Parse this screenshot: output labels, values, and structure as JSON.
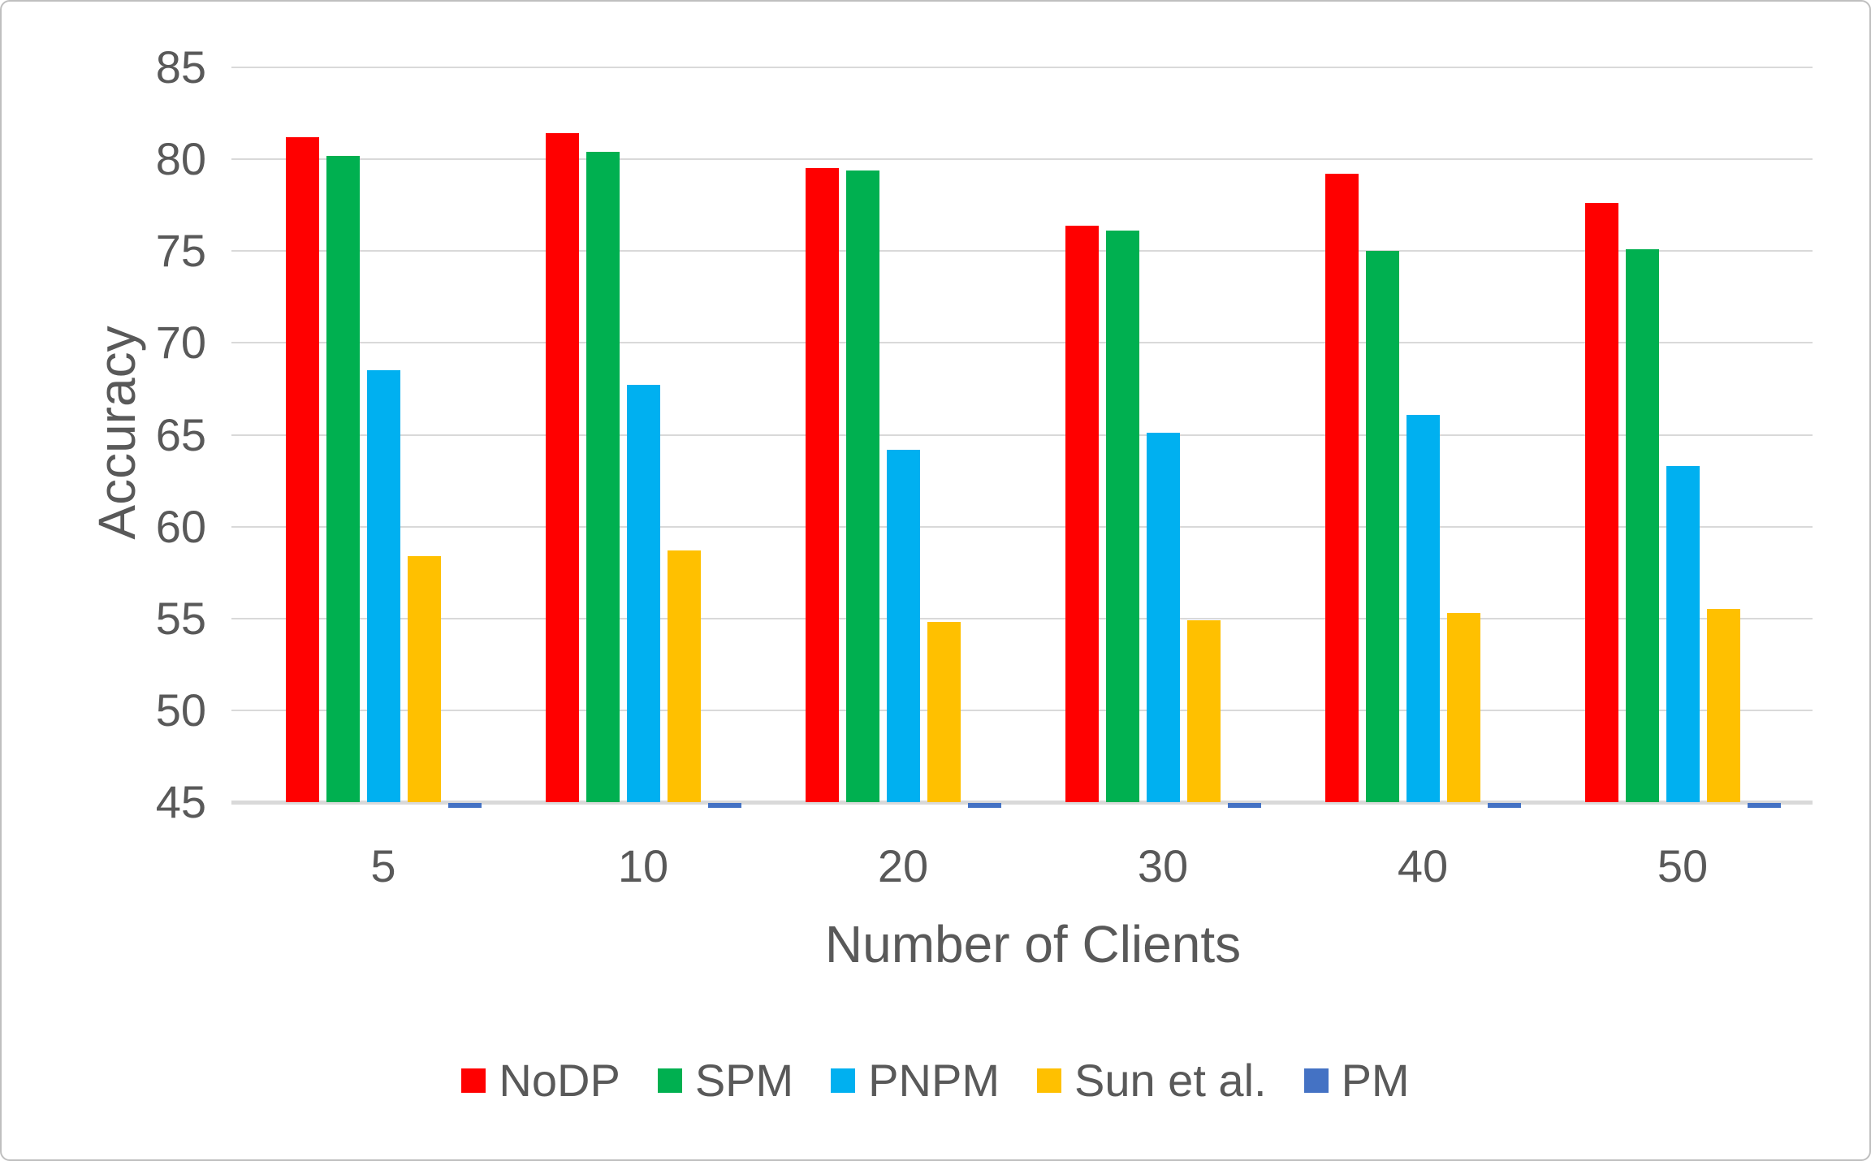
{
  "figure": {
    "background": "#FFFFFF",
    "border_color": "#BFBFBF"
  },
  "chart_data": {
    "type": "bar",
    "title": "",
    "xlabel": "Number of Clients",
    "ylabel": "Accuracy",
    "categories": [
      "5",
      "10",
      "20",
      "30",
      "40",
      "50"
    ],
    "series": [
      {
        "name": "NoDP",
        "color": "#FF0000",
        "values": [
          81.2,
          81.4,
          79.5,
          76.4,
          79.2,
          77.6
        ]
      },
      {
        "name": "SPM",
        "color": "#00B050",
        "values": [
          80.2,
          80.4,
          79.4,
          76.1,
          75.0,
          75.1
        ]
      },
      {
        "name": "PNPM",
        "color": "#00B0F0",
        "values": [
          68.5,
          67.7,
          64.2,
          65.1,
          66.1,
          63.3
        ]
      },
      {
        "name": "Sun et al.",
        "color": "#FFC000",
        "values": [
          58.4,
          58.7,
          54.8,
          54.9,
          55.3,
          55.5
        ]
      },
      {
        "name": "PM",
        "color": "#4472C4",
        "values": [
          45.1,
          45.1,
          45.1,
          45.1,
          45.1,
          45.1
        ]
      }
    ],
    "ylim": [
      45,
      85
    ],
    "ytick_step": 5,
    "yticks": [
      "45",
      "50",
      "55",
      "60",
      "65",
      "70",
      "75",
      "80",
      "85"
    ],
    "grid": true,
    "legend_position": "bottom",
    "gridline_color": "#D9D9D9",
    "text_color": "#595959"
  }
}
